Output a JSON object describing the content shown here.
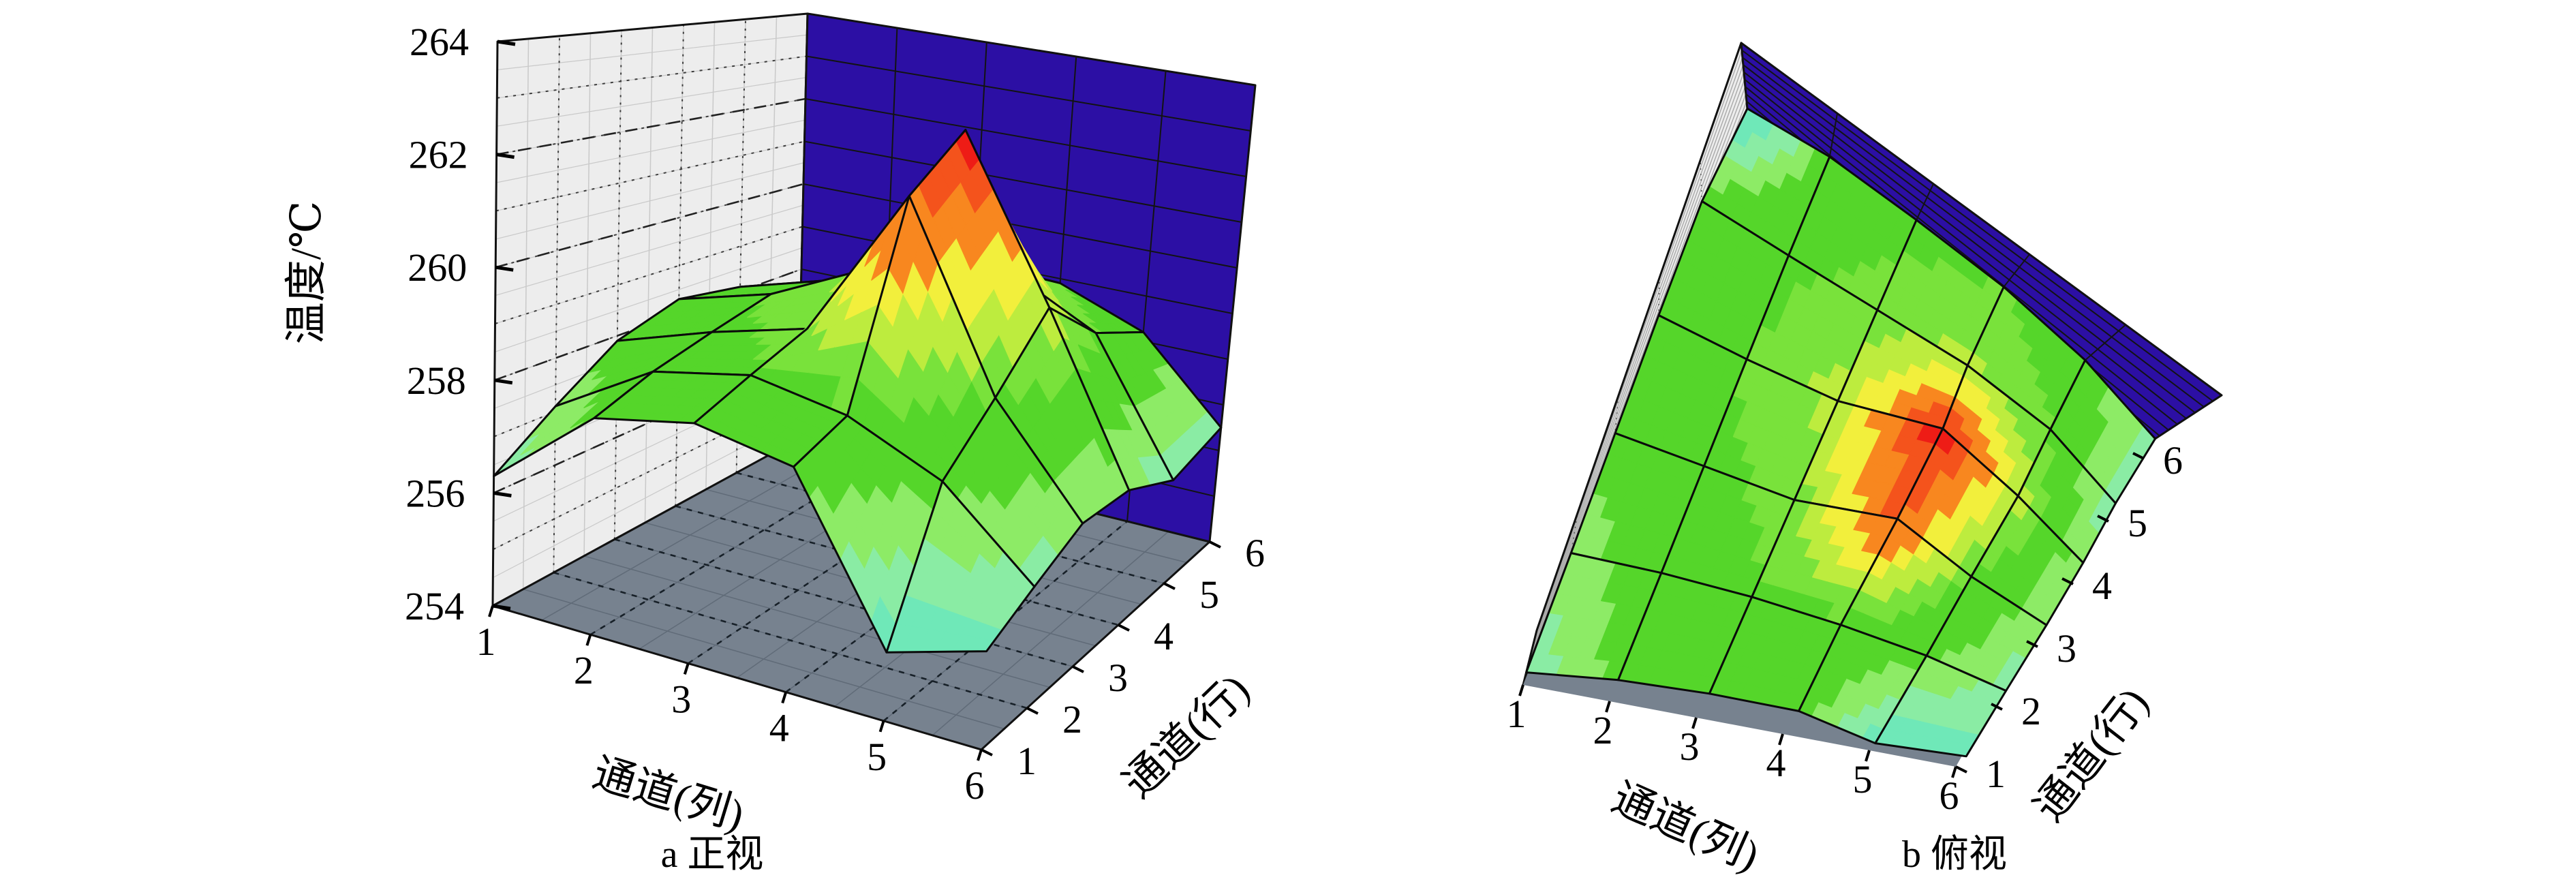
{
  "figure": {
    "background": "#ffffff",
    "description": "Two 3D contour surface plots of channel temperature distribution"
  },
  "colors": {
    "back_wall": "#2c0fa4",
    "back_wall_grid": "#131313",
    "side_wall": "#ededed",
    "side_wall_grid_light": "#c9c9c9",
    "side_wall_grid_dark": "#3c3c3c",
    "floor": "#77828f",
    "floor_grid_light": "#606b78",
    "floor_grid_dark": "#172028",
    "mesh_line": "#0a0a0a",
    "text": "#000000"
  },
  "palette_bands": [
    {
      "up_to": 255.4,
      "color": "#3f9ff2"
    },
    {
      "up_to": 256.1,
      "color": "#6fe8b8"
    },
    {
      "up_to": 256.8,
      "color": "#8aeca4"
    },
    {
      "up_to": 257.6,
      "color": "#8deb66"
    },
    {
      "up_to": 258.9,
      "color": "#55d62a"
    },
    {
      "up_to": 259.6,
      "color": "#79e23b"
    },
    {
      "up_to": 260.3,
      "color": "#bdec3e"
    },
    {
      "up_to": 261.2,
      "color": "#f2ef3c"
    },
    {
      "up_to": 262.2,
      "color": "#f8871f"
    },
    {
      "up_to": 262.9,
      "color": "#f4531c"
    },
    {
      "up_to": 999,
      "color": "#ee1c16"
    }
  ],
  "chart_data": [
    {
      "id": "front-view",
      "type": "surface3d",
      "title": "a 正视",
      "view": "front",
      "x_axis": {
        "label": "通道(列)",
        "ticks": [
          "1",
          "2",
          "3",
          "4",
          "5",
          "6"
        ]
      },
      "y_axis": {
        "label": "通道(行)",
        "ticks": [
          "1",
          "2",
          "3",
          "4",
          "5",
          "6"
        ]
      },
      "z_axis": {
        "label": "温度/℃",
        "ticks": [
          "254",
          "256",
          "258",
          "260",
          "262",
          "264"
        ],
        "range": [
          254,
          264
        ]
      },
      "grid_rows_are_y": true,
      "values": [
        [
          256.3,
          257.9,
          258.4,
          258.2,
          255.3,
          255.9
        ],
        [
          257.1,
          258.3,
          258.8,
          258.6,
          257.9,
          256.4
        ],
        [
          257.9,
          258.6,
          259.2,
          262.4,
          258.9,
          256.9
        ],
        [
          258.3,
          258.9,
          259.9,
          263.3,
          260.1,
          256.8
        ],
        [
          258.1,
          258.7,
          259.3,
          259.8,
          258.9,
          256.2
        ],
        [
          255.0,
          257.8,
          258.6,
          258.9,
          258.2,
          256.5
        ]
      ]
    },
    {
      "id": "top-view",
      "type": "surface3d",
      "title": "b 俯视",
      "view": "top",
      "x_axis": {
        "label": "通道(列)",
        "ticks": [
          "1",
          "2",
          "3",
          "4",
          "5",
          "6"
        ]
      },
      "y_axis": {
        "label": "通道(行)",
        "ticks": [
          "1",
          "2",
          "3",
          "4",
          "5",
          "6"
        ]
      },
      "z_axis": {
        "label": "温度/℃",
        "ticks": [],
        "range": [
          254,
          264
        ]
      },
      "grid_rows_are_y": true,
      "values": [
        [
          256.3,
          257.9,
          258.4,
          258.2,
          255.3,
          255.9
        ],
        [
          257.1,
          258.3,
          258.8,
          258.6,
          257.9,
          256.4
        ],
        [
          257.9,
          258.6,
          259.2,
          262.4,
          258.9,
          256.9
        ],
        [
          258.3,
          258.9,
          259.9,
          263.3,
          260.1,
          256.8
        ],
        [
          258.1,
          258.7,
          259.3,
          259.8,
          258.9,
          256.2
        ],
        [
          255.0,
          257.8,
          258.6,
          258.9,
          258.2,
          256.5
        ]
      ]
    }
  ]
}
